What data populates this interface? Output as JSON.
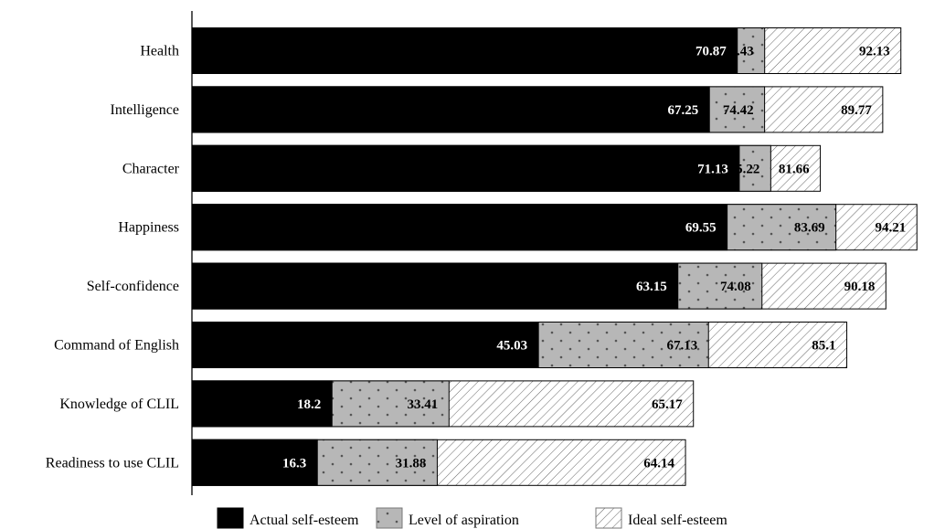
{
  "chart_data": {
    "type": "bar",
    "orientation": "horizontal",
    "stacked": false,
    "bars_overlap": true,
    "categories": [
      "Health",
      "Intelligence",
      "Character",
      "Happiness",
      "Self-confidence",
      "Command of English",
      "Knowledge of CLIL",
      "Readiness to use CLIL"
    ],
    "series": [
      {
        "name": "Actual self-esteem",
        "pattern": "solid-black",
        "values": [
          70.87,
          67.25,
          71.13,
          69.55,
          63.15,
          45.03,
          18.2,
          16.3
        ]
      },
      {
        "name": "Level of aspiration",
        "pattern": "dotted-gray",
        "values": [
          74.43,
          74.42,
          75.22,
          83.69,
          74.08,
          67.13,
          33.41,
          31.88
        ]
      },
      {
        "name": "Ideal self-esteem",
        "pattern": "diagonal-hatch",
        "values": [
          92.13,
          89.77,
          81.66,
          94.21,
          90.18,
          85.1,
          65.17,
          64.14
        ]
      }
    ],
    "data_labels": [
      [
        "70.87",
        "74.43",
        "92.13"
      ],
      [
        "67.25",
        "74.42",
        "89.77"
      ],
      [
        "71.13",
        "75.22",
        "81.66"
      ],
      [
        "69.55",
        "83.69",
        "94.21"
      ],
      [
        "63.15",
        "74.08",
        "90.18"
      ],
      [
        "45.03",
        "67.13",
        "85.1"
      ],
      [
        "18.2",
        "33.41",
        "65.17"
      ],
      [
        "16.3",
        "31.88",
        "64.14"
      ]
    ],
    "legend_position": "bottom",
    "title": "",
    "xlabel": "",
    "ylabel": "",
    "grid": false
  }
}
